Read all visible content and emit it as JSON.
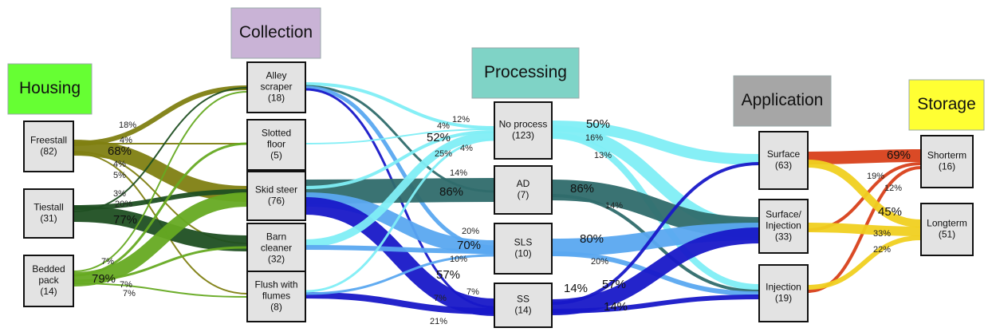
{
  "headers": [
    "Housing",
    "Collection",
    "Processing",
    "Application",
    "Storage"
  ],
  "nodes": [
    {
      "label": [
        "Freestall"
      ],
      "count": "(82)"
    },
    {
      "label": [
        "Tiestall"
      ],
      "count": "(31)"
    },
    {
      "label": [
        "Bedded",
        "pack"
      ],
      "count": "(14)"
    },
    {
      "label": [
        "Alley",
        "scraper"
      ],
      "count": "(18)"
    },
    {
      "label": [
        "Slotted",
        "floor"
      ],
      "count": "(5)"
    },
    {
      "label": [
        "Skid steer"
      ],
      "count": "(76)"
    },
    {
      "label": [
        "Barn",
        "cleaner"
      ],
      "count": "(32)"
    },
    {
      "label": [
        "Flush with",
        "flumes"
      ],
      "count": "(8)"
    },
    {
      "label": [
        "No process"
      ],
      "count": "(123)"
    },
    {
      "label": [
        "AD"
      ],
      "count": "(7)"
    },
    {
      "label": [
        "SLS"
      ],
      "count": "(10)"
    },
    {
      "label": [
        "SS"
      ],
      "count": "(14)"
    },
    {
      "label": [
        "Surface"
      ],
      "count": "(63)"
    },
    {
      "label": [
        "Surface/",
        "Injection"
      ],
      "count": "(33)"
    },
    {
      "label": [
        "Injection"
      ],
      "count": "(19)"
    },
    {
      "label": [
        "Shorterm"
      ],
      "count": "(16)"
    },
    {
      "label": [
        "Longterm"
      ],
      "count": "(51)"
    }
  ],
  "labels": [
    "18%",
    "4%",
    "68%",
    "4%",
    "5%",
    "3%",
    "20%",
    "77%",
    "7%",
    "79%",
    "7%",
    "7%",
    "12%",
    "4%",
    "52%",
    "25%",
    "4%",
    "14%",
    "86%",
    "20%",
    "70%",
    "10%",
    "57%",
    "7%",
    "7%",
    "21%",
    "50%",
    "16%",
    "13%",
    "86%",
    "14%",
    "80%",
    "20%",
    "14%",
    "57%",
    "14%",
    "69%",
    "19%",
    "12%",
    "45%",
    "33%",
    "22%"
  ]
}
